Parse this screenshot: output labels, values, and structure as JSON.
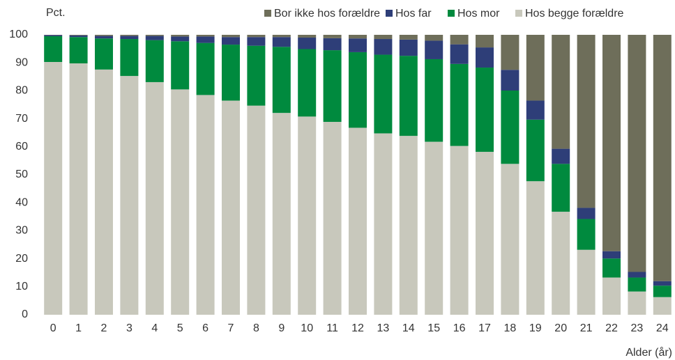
{
  "chart_data": {
    "type": "stacked_bar",
    "y_label": "Pct.",
    "x_label": "Alder (år)",
    "categories": [
      "0",
      "1",
      "2",
      "3",
      "4",
      "5",
      "6",
      "7",
      "8",
      "9",
      "10",
      "11",
      "12",
      "13",
      "14",
      "15",
      "16",
      "17",
      "18",
      "19",
      "20",
      "21",
      "22",
      "23",
      "24"
    ],
    "series": [
      {
        "name": "Hos begge forældre",
        "color": "#c8c8bc",
        "values": [
          90.3,
          89.8,
          87.6,
          85.3,
          83.1,
          80.5,
          78.5,
          76.5,
          74.7,
          72.1,
          70.8,
          68.9,
          66.8,
          64.8,
          63.9,
          61.8,
          60.3,
          58.2,
          53.9,
          47.7,
          36.8,
          23.2,
          13.3,
          8.3,
          6.3
        ]
      },
      {
        "name": "Hos mor",
        "color": "#008a3e",
        "values": [
          9.2,
          9.4,
          11.1,
          13.2,
          15.0,
          17.2,
          18.6,
          20.0,
          21.4,
          23.6,
          24.1,
          25.6,
          27.0,
          28.1,
          28.6,
          29.5,
          29.3,
          30.1,
          26.2,
          22.0,
          17.1,
          11.0,
          6.8,
          5.0,
          4.1
        ]
      },
      {
        "name": "Hos far",
        "color": "#2e3e78",
        "values": [
          0.4,
          0.6,
          0.9,
          1.1,
          1.5,
          1.7,
          2.3,
          2.7,
          3.1,
          3.5,
          4.1,
          4.3,
          4.9,
          5.6,
          5.8,
          6.6,
          7.0,
          7.2,
          7.4,
          6.8,
          5.4,
          4.0,
          2.6,
          2.0,
          1.6
        ]
      },
      {
        "name": "Bor ikke hos forældre",
        "color": "#6e6e5a",
        "values": [
          0.1,
          0.2,
          0.4,
          0.4,
          0.4,
          0.6,
          0.6,
          0.8,
          0.8,
          0.8,
          1.0,
          1.2,
          1.3,
          1.5,
          1.7,
          2.1,
          3.4,
          4.5,
          12.5,
          23.5,
          40.7,
          61.8,
          77.3,
          84.7,
          88.0
        ]
      }
    ],
    "ylim": [
      0,
      100
    ],
    "yticks": [
      0,
      10,
      20,
      30,
      40,
      50,
      60,
      70,
      80,
      90,
      100
    ],
    "legend": "top-right",
    "grid": false
  }
}
